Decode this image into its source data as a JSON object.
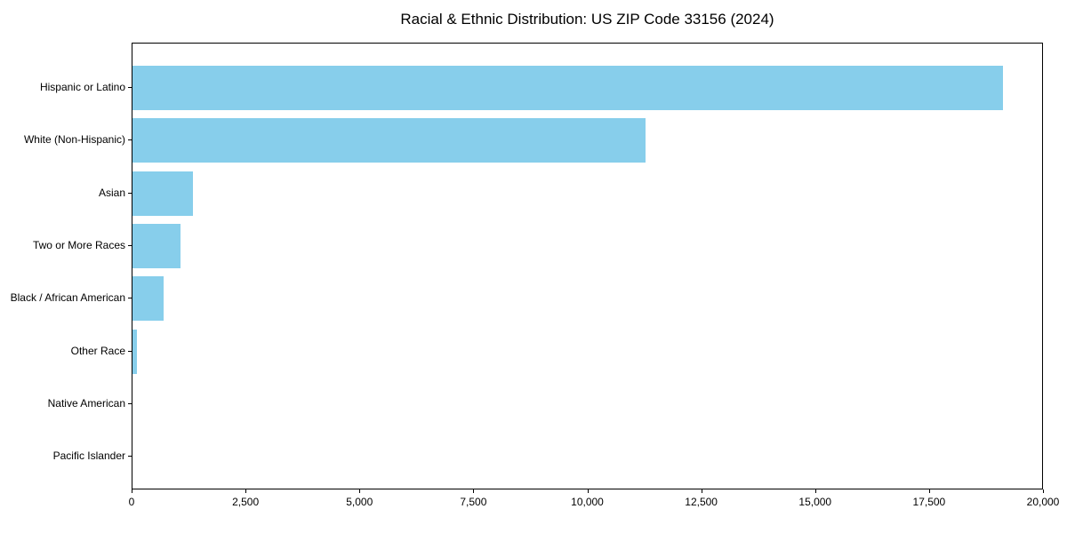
{
  "page": {
    "background": "#ffffff",
    "text_color": "#000000"
  },
  "chart_data": {
    "type": "bar",
    "orientation": "horizontal",
    "title": "Racial & Ethnic Distribution: US ZIP Code 33156 (2024)",
    "categories": [
      "Hispanic or Latino",
      "White (Non-Hispanic)",
      "Asian",
      "Two or More Races",
      "Black / African American",
      "Other Race",
      "Native American",
      "Pacific Islander"
    ],
    "values": [
      19100,
      11250,
      1330,
      1050,
      680,
      100,
      0,
      0
    ],
    "xlabel": "",
    "ylabel": "",
    "xlim": [
      0,
      20000
    ],
    "xticks": [
      0,
      2500,
      5000,
      7500,
      10000,
      12500,
      15000,
      17500,
      20000
    ],
    "xtick_labels": [
      "0",
      "2,500",
      "5,000",
      "7,500",
      "10,000",
      "12,500",
      "15,000",
      "17,500",
      "20,000"
    ],
    "bar_color": "#87CEEB",
    "grid": false,
    "legend_position": "none"
  }
}
